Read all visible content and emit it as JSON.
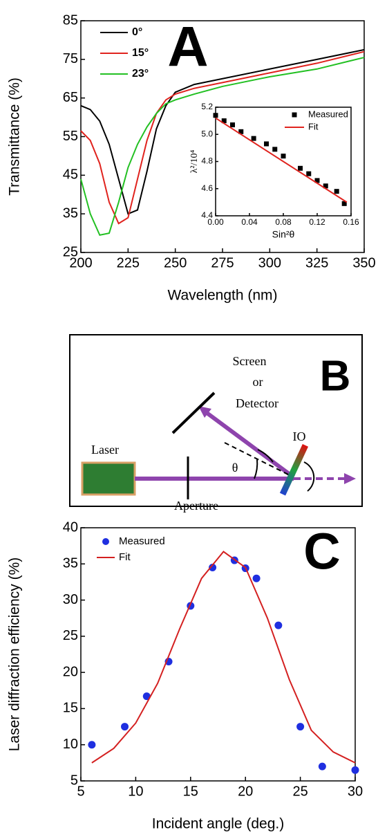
{
  "chart_data": [
    {
      "type": "line",
      "annotation": "A",
      "xlabel": "Wavelength (nm)",
      "ylabel": "Transmittance (%)",
      "x": [
        200,
        205,
        210,
        215,
        220,
        225,
        230,
        235,
        240,
        245,
        250,
        260,
        275,
        300,
        325,
        350
      ],
      "series": [
        {
          "name": "0°",
          "color": "#000000",
          "values": [
            63,
            62,
            59,
            53,
            44,
            35,
            36,
            46,
            57,
            63,
            66.5,
            68.5,
            70,
            72.5,
            75,
            77.5
          ]
        },
        {
          "name": "15°",
          "color": "#e0231e",
          "values": [
            56.5,
            54,
            48,
            38,
            32.5,
            34,
            44,
            54,
            61,
            64.5,
            66,
            67.5,
            69,
            71.5,
            74,
            77
          ]
        },
        {
          "name": "23°",
          "color": "#22c022",
          "values": [
            44,
            35,
            29.5,
            30,
            38,
            47,
            53,
            57.5,
            61,
            63.5,
            64.5,
            66,
            68,
            70.5,
            72.5,
            75.5
          ]
        }
      ],
      "xlim": [
        200,
        350
      ],
      "ylim": [
        25,
        85
      ],
      "xticks": [
        200,
        225,
        250,
        275,
        300,
        325,
        350
      ],
      "yticks": [
        25,
        35,
        45,
        55,
        65,
        75,
        85
      ],
      "legend": "upper left"
    },
    {
      "type": "scatter",
      "xlabel": "Sin²θ",
      "ylabel": "λ²/10⁴",
      "series": [
        {
          "name": "Measured",
          "type": "scatter",
          "marker": "square",
          "color": "#000000",
          "x": [
            0.0,
            0.01,
            0.02,
            0.03,
            0.045,
            0.06,
            0.07,
            0.08,
            0.1,
            0.11,
            0.12,
            0.13,
            0.143,
            0.152
          ],
          "values": [
            5.14,
            5.1,
            5.07,
            5.02,
            4.97,
            4.93,
            4.89,
            4.84,
            4.75,
            4.71,
            4.66,
            4.62,
            4.58,
            4.49
          ]
        },
        {
          "name": "Fit",
          "type": "line",
          "color": "#e0231e",
          "x": [
            0.0,
            0.155
          ],
          "values": [
            5.12,
            4.5
          ]
        }
      ],
      "xlim": [
        0,
        0.16
      ],
      "ylim": [
        4.4,
        5.2
      ],
      "xticks": [
        {
          "value": 0,
          "label": "0.00"
        },
        {
          "value": 0.04,
          "label": "0.04"
        },
        {
          "value": 0.08,
          "label": "0.08"
        },
        {
          "value": 0.12,
          "label": "0.12"
        },
        {
          "value": 0.16,
          "label": "0.16"
        }
      ],
      "yticks": [
        4.4,
        4.6,
        4.8,
        {
          "value": 5,
          "label": "5.0"
        },
        5.2
      ],
      "legend": "upper right"
    },
    {
      "type": "scatter",
      "annotation": "C",
      "xlabel": "Incident angle (deg.)",
      "ylabel": "Laser diffraction efficiency (%)",
      "series": [
        {
          "name": "Measured",
          "type": "scatter",
          "marker": "circle",
          "color": "#1f2fe0",
          "x": [
            6,
            9,
            11,
            13,
            15,
            17,
            19,
            20,
            21,
            23,
            25,
            27,
            30
          ],
          "values": [
            10,
            12.5,
            16.7,
            21.5,
            29.2,
            34.5,
            35.5,
            34.4,
            33,
            26.5,
            12.5,
            7,
            6.5
          ]
        },
        {
          "name": "Fit",
          "type": "line",
          "color": "#d42020",
          "x": [
            6,
            8,
            10,
            12,
            14,
            16,
            18,
            20,
            22,
            24,
            26,
            28,
            30
          ],
          "values": [
            7.5,
            9.5,
            13,
            18.5,
            26,
            33,
            36.7,
            34.5,
            27.5,
            19,
            12,
            9,
            7.5
          ]
        }
      ],
      "xlim": [
        5,
        30
      ],
      "ylim": [
        5,
        40
      ],
      "xticks": [
        5,
        10,
        15,
        20,
        25,
        30
      ],
      "yticks": [
        5,
        10,
        15,
        20,
        25,
        30,
        35,
        40
      ],
      "legend": "upper left"
    }
  ],
  "diagram": {
    "screen": "Screen",
    "or": "or",
    "detector": "Detector",
    "letter": "B",
    "laser": "Laser",
    "aperture": "Aperture",
    "angle": "θ",
    "sample": "IO"
  }
}
